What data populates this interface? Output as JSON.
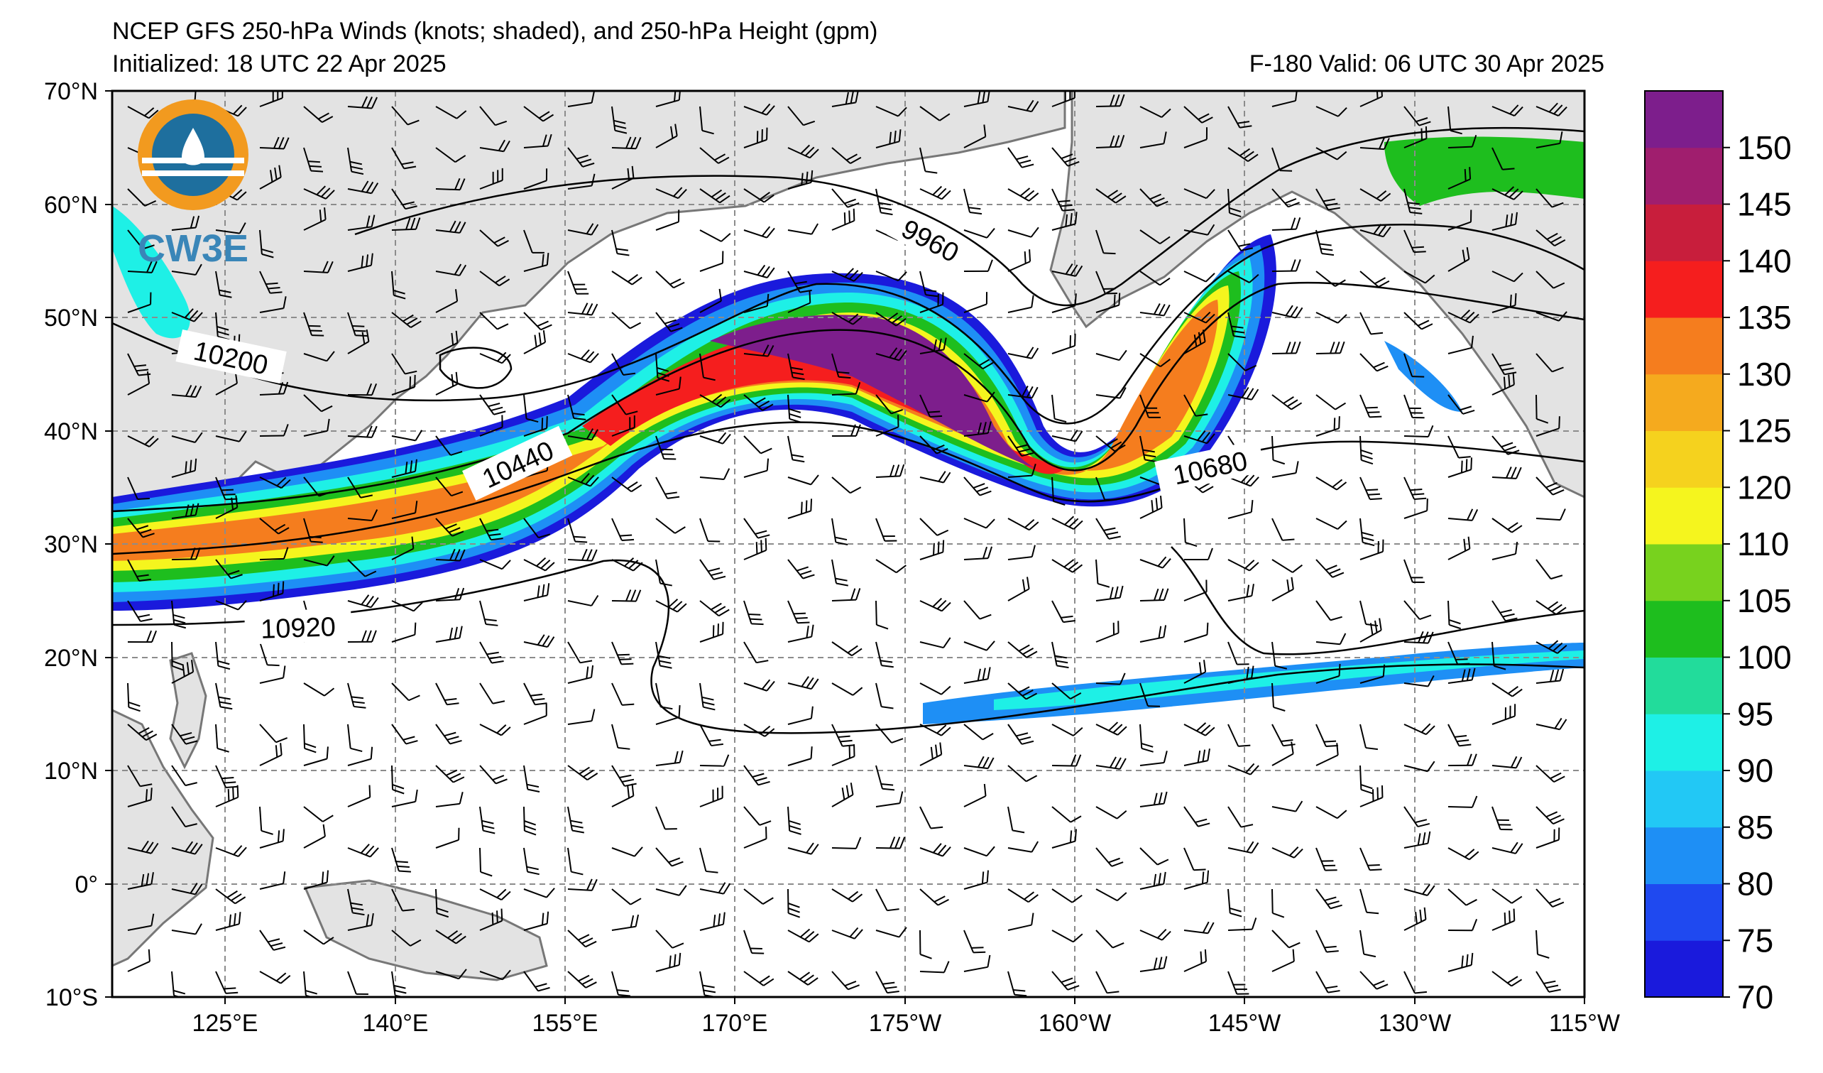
{
  "header": {
    "title": "NCEP GFS 250-hPa Winds (knots; shaded), and 250-hPa Height (gpm)",
    "initialized": "Initialized: 18 UTC 22 Apr 2025",
    "valid": "F-180  Valid: 06 UTC 30 Apr 2025"
  },
  "logo": {
    "text": "CW3E"
  },
  "axes": {
    "lat_labels": [
      "70°N",
      "60°N",
      "50°N",
      "40°N",
      "30°N",
      "20°N",
      "10°N",
      "0°",
      "10°S"
    ],
    "lon_labels": [
      "125°E",
      "140°E",
      "155°E",
      "170°E",
      "175°W",
      "160°W",
      "145°W",
      "130°W",
      "115°W"
    ]
  },
  "colorbar": {
    "labels": [
      "70",
      "75",
      "80",
      "85",
      "90",
      "95",
      "100",
      "105",
      "110",
      "120",
      "125",
      "130",
      "135",
      "140",
      "145",
      "150"
    ],
    "colors": [
      "#1a1adc",
      "#1f49f0",
      "#1e8ff5",
      "#22c8f5",
      "#1ef0e6",
      "#22dc9b",
      "#1ebe1e",
      "#78d21e",
      "#f5f51e",
      "#f5d21e",
      "#f5aa1e",
      "#f57d1e",
      "#f51e1e",
      "#c81e3c",
      "#a01e6e",
      "#7d1e8c"
    ]
  },
  "contour_labels": [
    "9960",
    "10200",
    "10440",
    "10680",
    "10920"
  ],
  "colors": {
    "land": "#e3e3e3",
    "coast": "#777777",
    "grid": "#8c8c8c",
    "contour": "#000000"
  }
}
